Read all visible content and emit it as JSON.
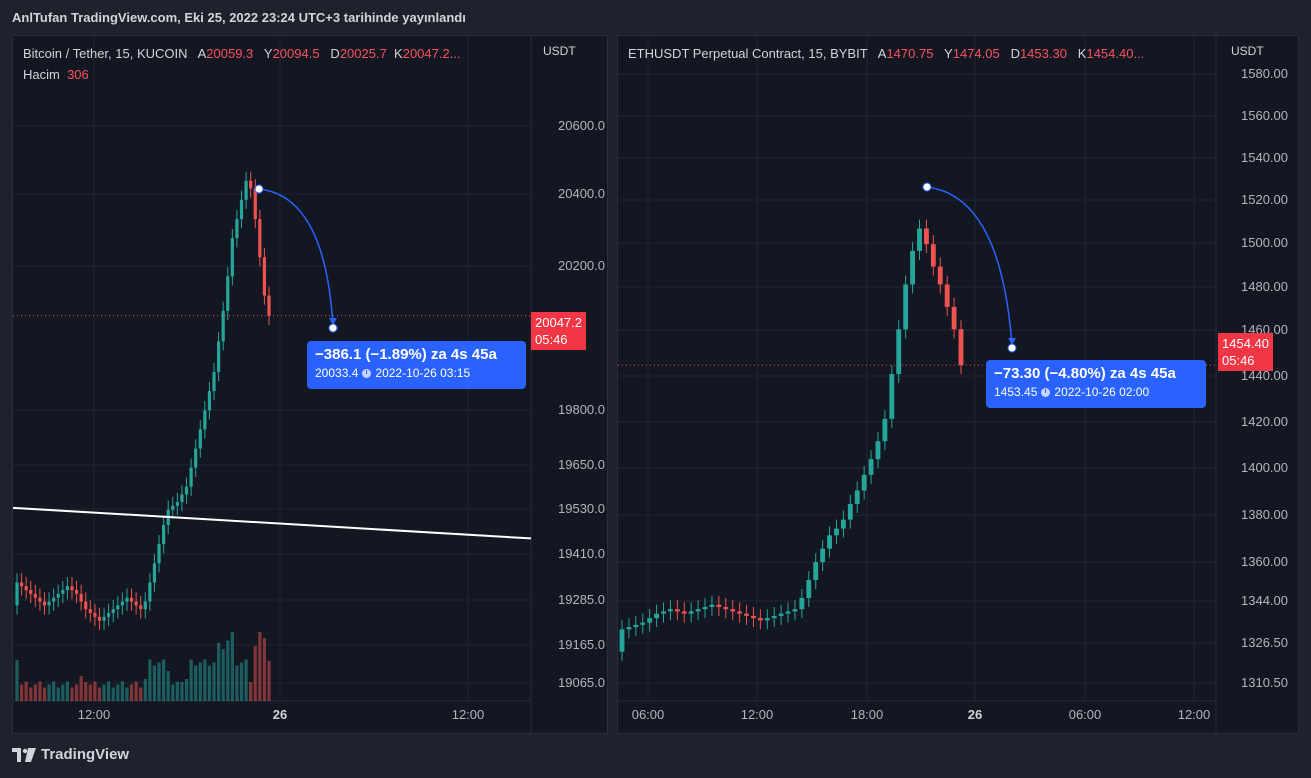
{
  "header": {
    "published": "AnlTufan TradingView.com, Eki 25, 2022 23:24 UTC+3 tarihinde yayınlandı"
  },
  "colors": {
    "up": "#26a69a",
    "down": "#ef5350",
    "accent": "#2962ff",
    "badge": "#f23645"
  },
  "footer": {
    "brand": "TradingView"
  },
  "btc": {
    "legend": {
      "symbol": "Bitcoin / Tether, 15, KUCOIN",
      "o_label": "A",
      "o": "20059.3",
      "h_label": "Y",
      "h": "20094.5",
      "l_label": "D",
      "l": "20025.7",
      "c_label": "K",
      "c": "20047.2...",
      "vol_label": "Hacim",
      "vol": "306"
    },
    "unit": "USDT",
    "y_ticks": [
      "20600.0",
      "20400.0",
      "20200.0",
      "19800.0",
      "19650.0",
      "19530.0",
      "19410.0",
      "19285.0",
      "19165.0",
      "19065.0"
    ],
    "x_ticks": [
      "12:00",
      "26",
      "12:00"
    ],
    "price_badge": {
      "price": "20047.2",
      "countdown": "05:46"
    },
    "tooltip": {
      "change": "−386.1 (−1.89%) za 4s 45a",
      "detail_price": "20033.4",
      "detail_time": "2022-10-26  03:15"
    }
  },
  "eth": {
    "legend": {
      "symbol": "ETHUSDT Perpetual Contract, 15, BYBIT",
      "o_label": "A",
      "o": "1470.75",
      "h_label": "Y",
      "h": "1474.05",
      "l_label": "D",
      "l": "1453.30",
      "c_label": "K",
      "c": "1454.40..."
    },
    "unit": "USDT",
    "y_ticks": [
      "1580.00",
      "1560.00",
      "1540.00",
      "1520.00",
      "1500.00",
      "1480.00",
      "1460.00",
      "1440.00",
      "1420.00",
      "1400.00",
      "1380.00",
      "1360.00",
      "1344.00",
      "1326.50",
      "1310.50"
    ],
    "x_ticks": [
      "06:00",
      "12:00",
      "18:00",
      "26",
      "06:00",
      "12:00"
    ],
    "price_badge": {
      "price": "1454.40",
      "countdown": "05:46"
    },
    "tooltip": {
      "change": "−73.30 (−4.80%) za 4s 45a",
      "detail_price": "1453.45",
      "detail_time": "2022-10-26  02:00"
    }
  },
  "chart_data": [
    {
      "type": "candlestick",
      "title": "Bitcoin / Tether, 15, KUCOIN",
      "ylabel": "USDT",
      "ylim": [
        19040,
        20700
      ],
      "closes": [
        19350,
        19340,
        19330,
        19320,
        19310,
        19300,
        19290,
        19300,
        19310,
        19320,
        19330,
        19340,
        19330,
        19320,
        19300,
        19280,
        19270,
        19260,
        19250,
        19260,
        19270,
        19280,
        19290,
        19300,
        19310,
        19300,
        19290,
        19280,
        19300,
        19350,
        19400,
        19450,
        19500,
        19540,
        19550,
        19560,
        19580,
        19600,
        19650,
        19700,
        19750,
        19800,
        19850,
        19900,
        19980,
        20060,
        20150,
        20250,
        20300,
        20350,
        20400,
        20380,
        20300,
        20200,
        20100,
        20047
      ],
      "annotation_trendline": [
        [
          0,
          19545
        ],
        [
          1,
          19465
        ]
      ],
      "volume_unit": "Hacim"
    },
    {
      "type": "candlestick",
      "title": "ETHUSDT Perpetual Contract, 15, BYBIT",
      "ylabel": "USDT",
      "ylim": [
        1304,
        1584
      ],
      "closes": [
        1336,
        1337,
        1338,
        1339,
        1341,
        1343,
        1344,
        1345,
        1344,
        1343,
        1344,
        1345,
        1346,
        1347,
        1346,
        1345,
        1344,
        1343,
        1342,
        1341,
        1340,
        1341,
        1342,
        1343,
        1344,
        1345,
        1350,
        1358,
        1366,
        1372,
        1378,
        1381,
        1385,
        1392,
        1398,
        1405,
        1412,
        1420,
        1430,
        1450,
        1470,
        1490,
        1505,
        1515,
        1508,
        1498,
        1490,
        1480,
        1470,
        1454
      ]
    }
  ]
}
